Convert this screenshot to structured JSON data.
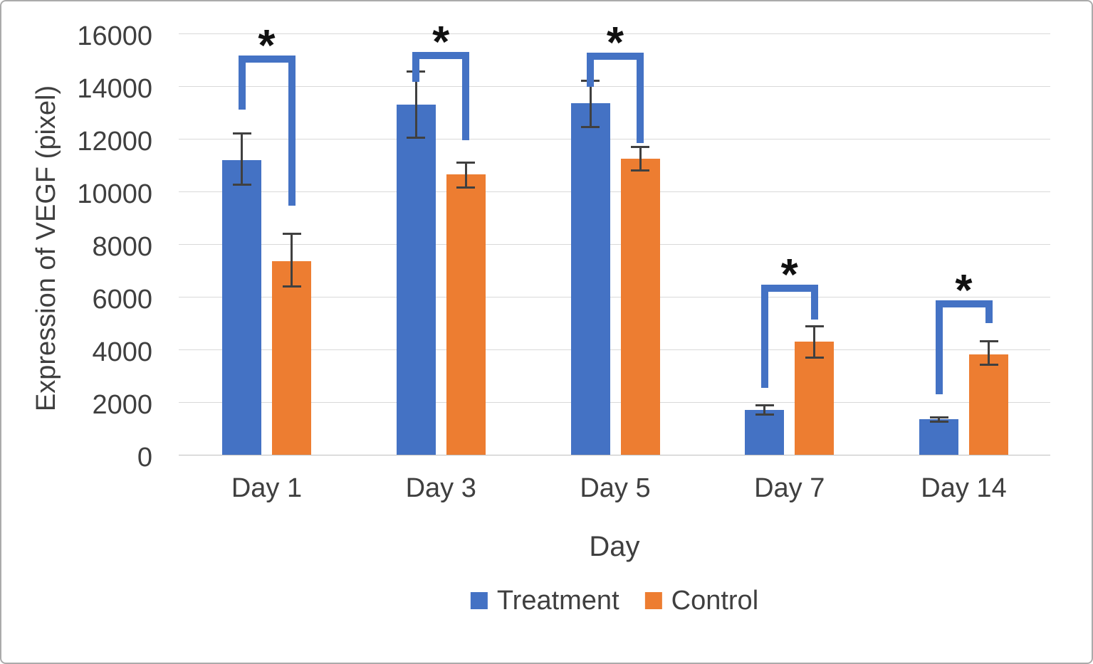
{
  "figure": {
    "background": "#FFFFFF",
    "border_color": "#ABABAB"
  },
  "chart_data": {
    "type": "bar",
    "title": "",
    "xlabel": "Day",
    "ylabel": "Expression of VEGF (pixel)",
    "ylim": [
      0,
      16000
    ],
    "yticks": [
      0,
      2000,
      4000,
      6000,
      8000,
      10000,
      12000,
      14000,
      16000
    ],
    "grid": true,
    "legend_position": "bottom",
    "categories": [
      "Day 1",
      "Day 3",
      "Day 5",
      "Day 7",
      "Day 14"
    ],
    "series": [
      {
        "name": "Treatment",
        "color": "#4472C4",
        "values": [
          11200,
          13300,
          13350,
          1700,
          1350
        ],
        "error_low": [
          10250,
          12050,
          12450,
          1540,
          1270
        ],
        "error_high": [
          12200,
          14550,
          14200,
          1870,
          1430
        ]
      },
      {
        "name": "Control",
        "color": "#ED7D31",
        "values": [
          7350,
          10650,
          11250,
          4300,
          3800
        ],
        "error_low": [
          6400,
          10150,
          10800,
          3700,
          3430
        ],
        "error_high": [
          8400,
          11100,
          11700,
          4870,
          4300
        ]
      }
    ],
    "error_bar_color": "#404040",
    "bracket_color": "#4472C4",
    "significance_brackets": [
      {
        "category": "Day 1",
        "label": "*",
        "bar_y": 15150,
        "left_leg_bottom": 13100,
        "right_leg_bottom": 9460
      },
      {
        "category": "Day 3",
        "label": "*",
        "bar_y": 15300,
        "left_leg_bottom": 14160,
        "right_leg_bottom": 11950
      },
      {
        "category": "Day 5",
        "label": "*",
        "bar_y": 15270,
        "left_leg_bottom": 13970,
        "right_leg_bottom": 11840
      },
      {
        "category": "Day 7",
        "label": "*",
        "bar_y": 6470,
        "left_leg_bottom": 2540,
        "right_leg_bottom": 5130
      },
      {
        "category": "Day 14",
        "label": "*",
        "bar_y": 5870,
        "left_leg_bottom": 2300,
        "right_leg_bottom": 5000
      }
    ]
  }
}
